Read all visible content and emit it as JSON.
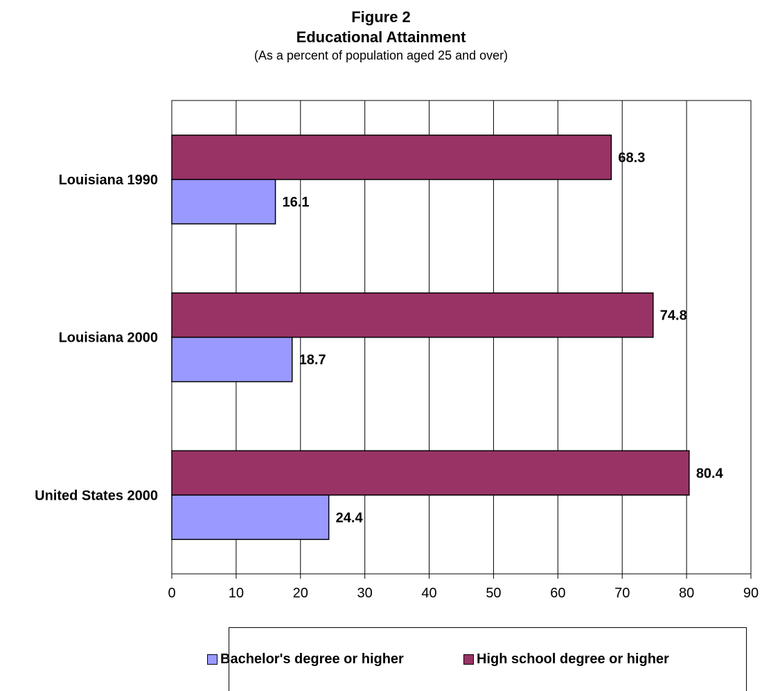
{
  "chart_data": {
    "type": "bar",
    "orientation": "horizontal",
    "title": "Figure 2",
    "subtitle": "Educational Attainment",
    "note": "(As a percent of population aged 25 and over)",
    "categories": [
      "Louisiana 1990",
      "Louisiana 2000",
      "United States 2000"
    ],
    "series": [
      {
        "name": "High school degree or higher",
        "color": "#993366",
        "values": [
          68.3,
          74.8,
          80.4
        ]
      },
      {
        "name": "Bachelor's degree or higher",
        "color": "#9999ff",
        "values": [
          16.1,
          18.7,
          24.4
        ]
      }
    ],
    "xlim": [
      0,
      90
    ],
    "xticks": [
      0,
      10,
      20,
      30,
      40,
      50,
      60,
      70,
      80,
      90
    ],
    "grid": "vertical",
    "legend_position": "bottom",
    "legend_order": [
      "Bachelor's degree or higher",
      "High school degree or higher"
    ]
  }
}
